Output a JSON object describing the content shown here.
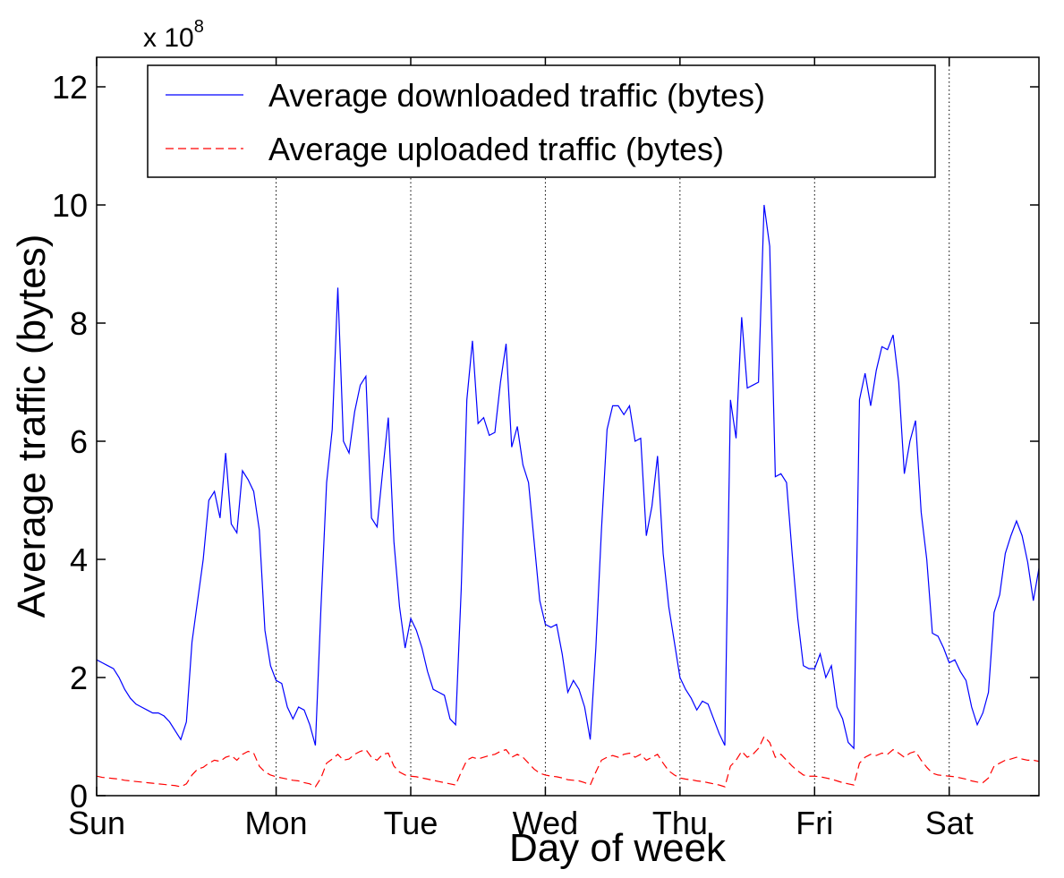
{
  "chart_data": {
    "type": "line",
    "x_label": "Day of week",
    "y_label": "Average traffic (bytes)",
    "y_multiplier": {
      "base": "x 10",
      "exponent": "8"
    },
    "x": [
      0,
      1,
      2,
      3,
      4,
      5,
      6,
      7,
      8,
      9,
      10,
      11,
      12,
      13,
      14,
      15,
      16,
      17,
      18,
      19,
      20,
      21,
      22,
      23,
      24,
      25,
      26,
      27,
      28,
      29,
      30,
      31,
      32,
      33,
      34,
      35,
      36,
      37,
      38,
      39,
      40,
      41,
      42,
      43,
      44,
      45,
      46,
      47,
      48,
      49,
      50,
      51,
      52,
      53,
      54,
      55,
      56,
      57,
      58,
      59,
      60,
      61,
      62,
      63,
      64,
      65,
      66,
      67,
      68,
      69,
      70,
      71,
      72,
      73,
      74,
      75,
      76,
      77,
      78,
      79,
      80,
      81,
      82,
      83,
      84,
      85,
      86,
      87,
      88,
      89,
      90,
      91,
      92,
      93,
      94,
      95,
      96,
      97,
      98,
      99,
      100,
      101,
      102,
      103,
      104,
      105,
      106,
      107,
      108,
      109,
      110,
      111,
      112,
      113,
      114,
      115,
      116,
      117,
      118,
      119,
      120,
      121,
      122,
      123,
      124,
      125,
      126,
      127,
      128,
      129,
      130,
      131,
      132,
      133,
      134,
      135,
      136,
      137,
      138,
      139,
      140,
      141,
      142,
      143,
      144,
      145,
      146,
      147,
      148,
      149,
      150,
      151,
      152,
      153,
      154,
      155,
      156,
      157,
      158,
      159,
      160,
      161,
      162,
      163,
      164,
      165,
      166,
      167,
      168
    ],
    "series": [
      {
        "name": "Average downloaded traffic (bytes)",
        "color": "#0000ff",
        "dash": "solid",
        "values": [
          2.3,
          2.25,
          2.2,
          2.15,
          2.0,
          1.8,
          1.65,
          1.55,
          1.5,
          1.45,
          1.4,
          1.4,
          1.35,
          1.25,
          1.1,
          0.95,
          1.25,
          2.6,
          3.3,
          4.0,
          5.0,
          5.15,
          4.7,
          5.8,
          4.6,
          4.45,
          5.5,
          5.35,
          5.15,
          4.5,
          2.8,
          2.2,
          1.95,
          1.9,
          1.5,
          1.3,
          1.5,
          1.45,
          1.2,
          0.85,
          3.2,
          5.3,
          6.2,
          8.6,
          6.0,
          5.8,
          6.5,
          6.95,
          7.1,
          4.7,
          4.55,
          5.5,
          6.4,
          4.3,
          3.2,
          2.5,
          3.0,
          2.8,
          2.5,
          2.1,
          1.8,
          1.75,
          1.7,
          1.3,
          1.2,
          3.5,
          6.7,
          7.7,
          6.3,
          6.4,
          6.1,
          6.15,
          7.0,
          7.65,
          5.9,
          6.25,
          5.6,
          5.3,
          4.3,
          3.3,
          2.9,
          2.85,
          2.9,
          2.4,
          1.75,
          1.95,
          1.8,
          1.5,
          0.95,
          2.5,
          4.5,
          6.2,
          6.6,
          6.6,
          6.45,
          6.6,
          6.0,
          6.05,
          4.4,
          4.9,
          5.75,
          4.1,
          3.2,
          2.6,
          2.0,
          1.8,
          1.65,
          1.45,
          1.6,
          1.55,
          1.3,
          1.05,
          0.85,
          6.7,
          6.05,
          8.1,
          6.9,
          6.95,
          7.0,
          10.0,
          9.3,
          5.4,
          5.45,
          5.3,
          4.1,
          3.0,
          2.2,
          2.15,
          2.15,
          2.4,
          2.0,
          2.2,
          1.5,
          1.3,
          0.9,
          0.8,
          6.7,
          7.15,
          6.6,
          7.2,
          7.6,
          7.55,
          7.8,
          7.0,
          5.45,
          6.0,
          6.35,
          4.8,
          4.0,
          2.75,
          2.7,
          2.5,
          2.25,
          2.3,
          2.1,
          1.95,
          1.5,
          1.2,
          1.4,
          1.75,
          3.1,
          3.4,
          4.1,
          4.4,
          4.65,
          4.4,
          3.95,
          3.3,
          3.85
        ]
      },
      {
        "name": "Average uploaded traffic (bytes)",
        "color": "#ff0000",
        "dash": "dashed",
        "values": [
          0.33,
          0.31,
          0.3,
          0.29,
          0.28,
          0.26,
          0.25,
          0.24,
          0.23,
          0.22,
          0.21,
          0.2,
          0.19,
          0.18,
          0.17,
          0.15,
          0.2,
          0.35,
          0.45,
          0.48,
          0.55,
          0.6,
          0.58,
          0.65,
          0.68,
          0.6,
          0.7,
          0.75,
          0.72,
          0.5,
          0.4,
          0.35,
          0.32,
          0.3,
          0.28,
          0.26,
          0.25,
          0.22,
          0.2,
          0.15,
          0.3,
          0.55,
          0.62,
          0.7,
          0.6,
          0.62,
          0.7,
          0.75,
          0.78,
          0.65,
          0.6,
          0.7,
          0.72,
          0.5,
          0.4,
          0.35,
          0.33,
          0.32,
          0.3,
          0.28,
          0.26,
          0.24,
          0.22,
          0.2,
          0.18,
          0.4,
          0.6,
          0.65,
          0.62,
          0.65,
          0.68,
          0.7,
          0.75,
          0.78,
          0.65,
          0.7,
          0.65,
          0.55,
          0.45,
          0.38,
          0.35,
          0.33,
          0.32,
          0.3,
          0.27,
          0.26,
          0.25,
          0.22,
          0.18,
          0.4,
          0.6,
          0.65,
          0.68,
          0.65,
          0.7,
          0.72,
          0.65,
          0.7,
          0.6,
          0.65,
          0.7,
          0.55,
          0.42,
          0.35,
          0.3,
          0.28,
          0.27,
          0.25,
          0.24,
          0.22,
          0.2,
          0.18,
          0.15,
          0.5,
          0.6,
          0.75,
          0.65,
          0.7,
          0.8,
          1.0,
          0.9,
          0.65,
          0.7,
          0.6,
          0.5,
          0.42,
          0.35,
          0.33,
          0.33,
          0.32,
          0.3,
          0.28,
          0.25,
          0.22,
          0.2,
          0.18,
          0.55,
          0.65,
          0.7,
          0.68,
          0.72,
          0.7,
          0.78,
          0.72,
          0.65,
          0.72,
          0.75,
          0.6,
          0.48,
          0.38,
          0.35,
          0.34,
          0.33,
          0.32,
          0.3,
          0.28,
          0.25,
          0.23,
          0.22,
          0.3,
          0.5,
          0.55,
          0.6,
          0.62,
          0.65,
          0.62,
          0.6,
          0.6,
          0.58
        ]
      }
    ],
    "xlim": [
      0,
      168
    ],
    "xticks": [
      {
        "value": 0,
        "label": "Sun"
      },
      {
        "value": 32,
        "label": "Mon"
      },
      {
        "value": 56,
        "label": "Tue"
      },
      {
        "value": 80,
        "label": "Wed"
      },
      {
        "value": 104,
        "label": "Thu"
      },
      {
        "value": 128,
        "label": "Fri"
      },
      {
        "value": 152,
        "label": "Sat"
      }
    ],
    "ylim": [
      0,
      12.5
    ],
    "yticks": [
      0,
      2,
      4,
      6,
      8,
      10,
      12
    ],
    "xgrid": true,
    "ygrid": false,
    "legend": "top-left"
  }
}
